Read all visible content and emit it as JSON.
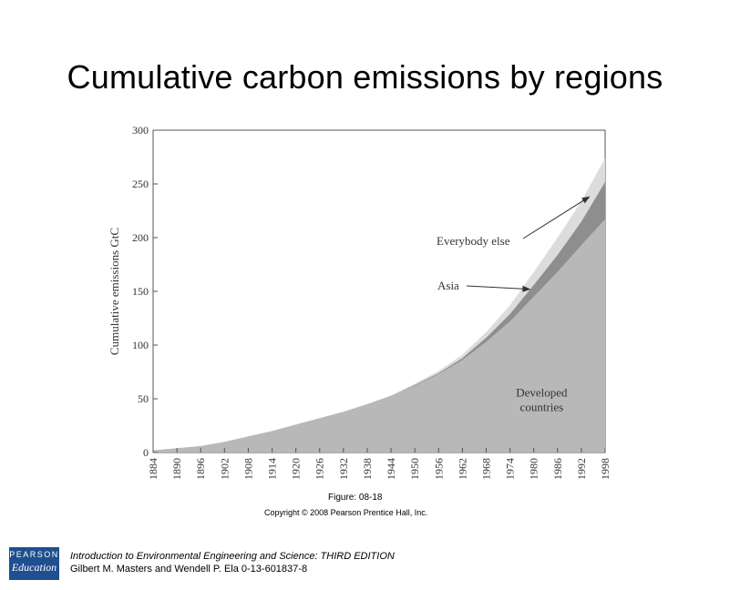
{
  "slide": {
    "title": "Cumulative carbon emissions by regions"
  },
  "figure": {
    "caption": "Figure: 08-18",
    "copyright": "Copyright © 2008 Pearson Prentice Hall, Inc."
  },
  "footer": {
    "logo_line1": "PEARSON",
    "logo_line2": "Education",
    "book_title": "Introduction to Environmental Engineering and Science: THIRD EDITION",
    "authors": "Gilbert M. Masters and Wendell P. Ela  0-13-601837-8"
  },
  "chart_data": {
    "type": "area",
    "stacked": true,
    "xlabel": "",
    "ylabel": "Cumulative emissions GtC",
    "ylim": [
      0,
      300
    ],
    "yticks": [
      0,
      50,
      100,
      150,
      200,
      250,
      300
    ],
    "xlim": [
      1884,
      1998
    ],
    "xticks": [
      1884,
      1890,
      1896,
      1902,
      1908,
      1914,
      1920,
      1926,
      1932,
      1938,
      1944,
      1950,
      1956,
      1962,
      1968,
      1974,
      1980,
      1986,
      1992,
      1998
    ],
    "x": [
      1884,
      1890,
      1896,
      1902,
      1908,
      1914,
      1920,
      1926,
      1932,
      1938,
      1944,
      1950,
      1956,
      1962,
      1968,
      1974,
      1980,
      1986,
      1992,
      1998
    ],
    "series": [
      {
        "name": "Developed countries",
        "values": [
          2,
          4,
          6,
          10,
          15,
          20,
          26,
          32,
          38,
          45,
          53,
          62,
          73,
          86,
          103,
          122,
          145,
          168,
          193,
          217
        ],
        "color": "#b8b8b8"
      },
      {
        "name": "Asia",
        "values": [
          0,
          0,
          0,
          0,
          0,
          0,
          0,
          0,
          0,
          0,
          0,
          1,
          1,
          2,
          4,
          7,
          11,
          16,
          22,
          35
        ],
        "color": "#8e8e8e"
      },
      {
        "name": "Everybody else",
        "values": [
          0,
          0,
          0,
          0,
          0,
          0,
          0,
          0,
          0,
          0,
          0,
          1,
          2,
          3,
          5,
          8,
          12,
          16,
          19,
          22
        ],
        "color": "#dcdcdc"
      }
    ],
    "annotations": [
      {
        "text": "Everybody else",
        "target_x": 1994,
        "target_y": 238
      },
      {
        "text": "Asia",
        "target_x": 1979,
        "target_y": 152
      },
      {
        "text": "Developed countries",
        "text_x": 1982,
        "text_y": 52
      }
    ]
  }
}
